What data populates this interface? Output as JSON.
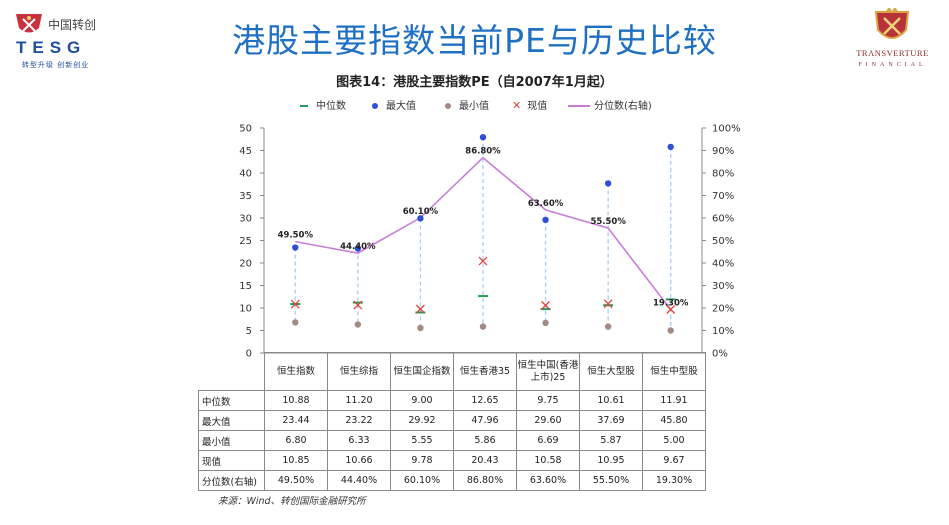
{
  "logos": {
    "left_cn": "中国转创",
    "left_brand": "TESG",
    "left_slogan": "转型升级 创新创业",
    "right_name": "TRANSVERTURE",
    "right_sub": "FINANCIAL"
  },
  "main_title": "港股主要指数当前PE与历史比较",
  "source": "来源：Wind、转创国际金融研究所",
  "colors": {
    "title": "#1f6fc2",
    "median": "#1e9e5a",
    "max": "#2e4fd6",
    "min": "#a08a82",
    "current": "#e0443c",
    "percentile": "#c77fd6",
    "range_line": "#a9cdf0"
  },
  "chart_data": {
    "type": "line",
    "title": "图表14：港股主要指数PE（自2007年1月起）",
    "legend": [
      "中位数",
      "最大值",
      "最小值",
      "现值",
      "分位数(右轴)"
    ],
    "legend_placement": "top",
    "categories": [
      "恒生指数",
      "恒生综指",
      "恒生国企指数",
      "恒生香港35",
      "恒生中国(香港上市)25",
      "恒生大型股",
      "恒生中型股"
    ],
    "series": [
      {
        "name": "中位数",
        "values": [
          10.88,
          11.2,
          9.0,
          12.65,
          9.75,
          10.61,
          11.91
        ],
        "axis": "left",
        "marker": "dash"
      },
      {
        "name": "最大值",
        "values": [
          23.44,
          23.22,
          29.92,
          47.96,
          29.6,
          37.69,
          45.8
        ],
        "axis": "left",
        "marker": "dot"
      },
      {
        "name": "最小值",
        "values": [
          6.8,
          6.33,
          5.55,
          5.86,
          6.69,
          5.87,
          5.0
        ],
        "axis": "left",
        "marker": "dot"
      },
      {
        "name": "现值",
        "values": [
          10.85,
          10.66,
          9.78,
          20.43,
          10.58,
          10.95,
          9.67
        ],
        "axis": "left",
        "marker": "x"
      },
      {
        "name": "分位数(右轴)",
        "values": [
          49.5,
          44.4,
          60.1,
          86.8,
          63.6,
          55.5,
          19.3
        ],
        "axis": "right",
        "marker": "line"
      }
    ],
    "point_labels": [
      "49.50%",
      "44.40%",
      "60.10%",
      "86.80%",
      "63.60%",
      "55.50%",
      "19.30%"
    ],
    "y_left": {
      "min": 0,
      "max": 50,
      "ticks": [
        "0",
        "5",
        "10",
        "15",
        "20",
        "25",
        "30",
        "35",
        "40",
        "45",
        "50"
      ]
    },
    "y_right": {
      "min": 0,
      "max": 100,
      "ticks": [
        "0%",
        "10%",
        "20%",
        "30%",
        "40%",
        "50%",
        "60%",
        "70%",
        "80%",
        "90%",
        "100%"
      ]
    },
    "grid": false,
    "table": {
      "row_labels": [
        "中位数",
        "最大值",
        "最小值",
        "现值",
        "分位数(右轴)"
      ],
      "rows": [
        [
          "10.88",
          "11.20",
          "9.00",
          "12.65",
          "9.75",
          "10.61",
          "11.91"
        ],
        [
          "23.44",
          "23.22",
          "29.92",
          "47.96",
          "29.60",
          "37.69",
          "45.80"
        ],
        [
          "6.80",
          "6.33",
          "5.55",
          "5.86",
          "6.69",
          "5.87",
          "5.00"
        ],
        [
          "10.85",
          "10.66",
          "9.78",
          "20.43",
          "10.58",
          "10.95",
          "9.67"
        ],
        [
          "49.50%",
          "44.40%",
          "60.10%",
          "86.80%",
          "63.60%",
          "55.50%",
          "19.30%"
        ]
      ]
    }
  }
}
